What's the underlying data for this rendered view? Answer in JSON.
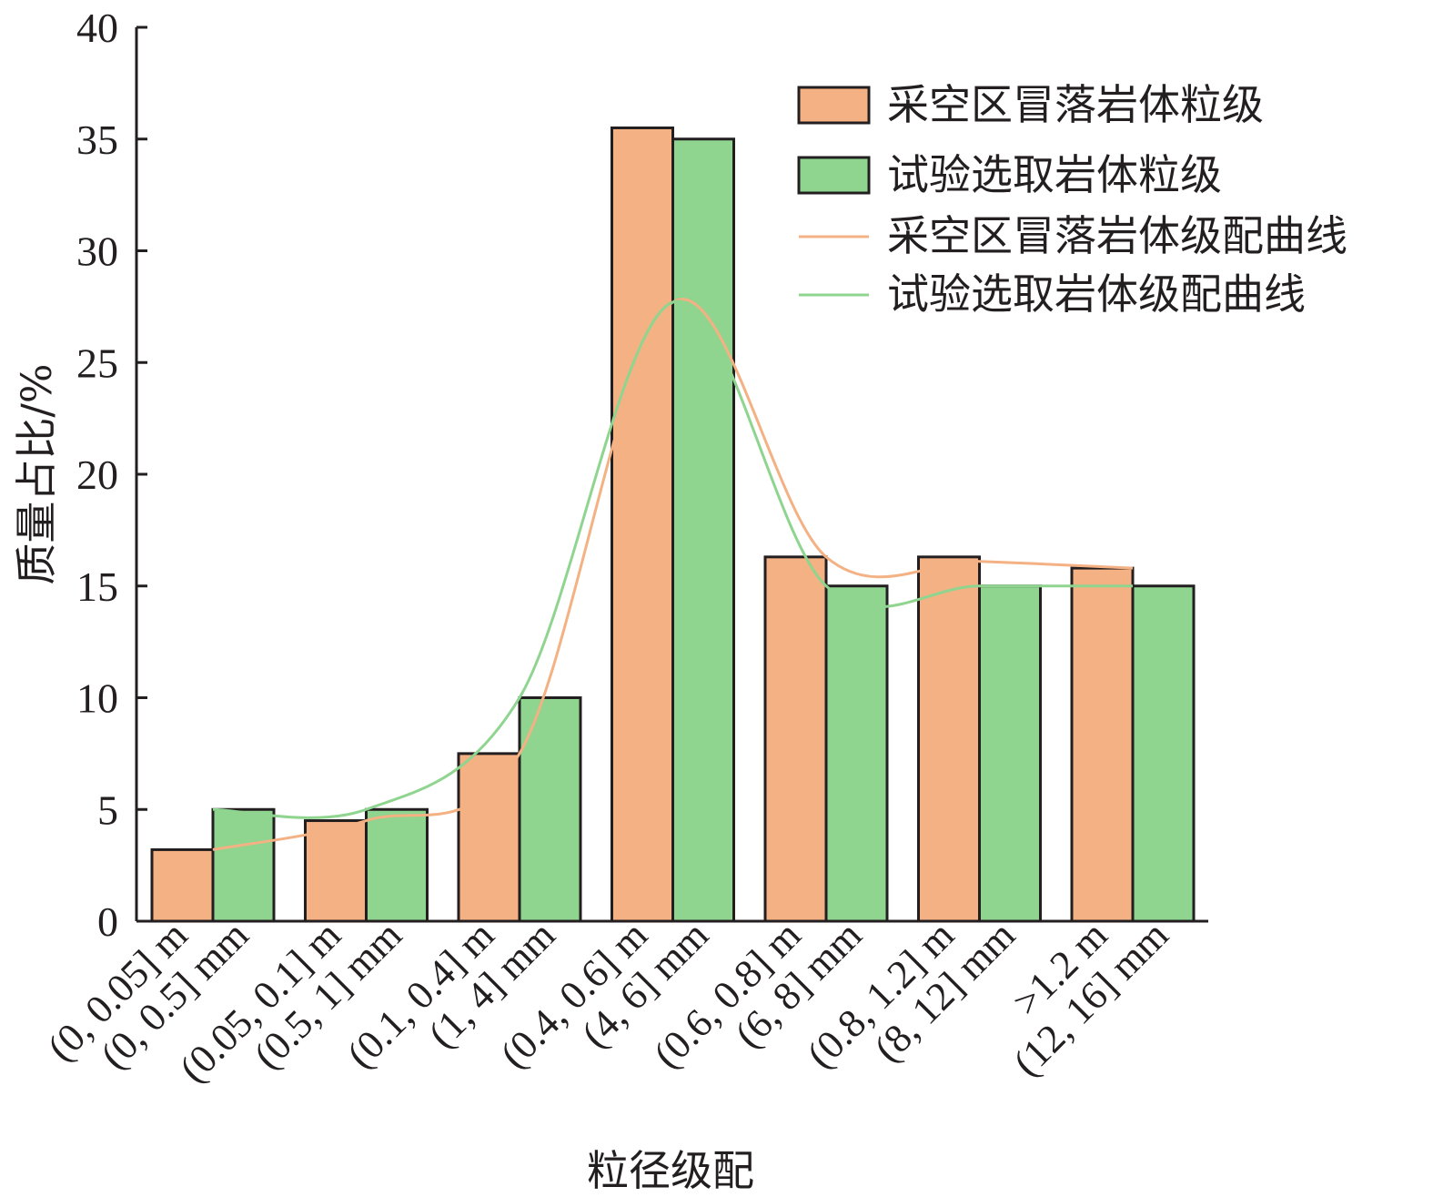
{
  "chart_data": {
    "type": "bar",
    "xlabel": "粒径级配",
    "ylabel": "质量占比/%",
    "ylim": [
      0,
      40
    ],
    "yticks": [
      0,
      5,
      10,
      15,
      20,
      25,
      30,
      35,
      40
    ],
    "groups": 7,
    "bar_labels": [
      [
        "(0, 0.05] m",
        "(0, 0.5] mm"
      ],
      [
        "(0.05, 0.1] m",
        "(0.5, 1] mm"
      ],
      [
        "(0.1, 0.4] m",
        "(1, 4] mm"
      ],
      [
        "(0.4, 0.6] m",
        "(4, 6] mm"
      ],
      [
        "(0.6, 0.8] m",
        "(6, 8] mm"
      ],
      [
        "(0.8, 1.2] m",
        "(8, 12] mm"
      ],
      [
        ">1.2 m",
        "(12, 16] mm"
      ]
    ],
    "series": [
      {
        "name": "采空区冒落岩体粒级",
        "kind": "bar",
        "color": "#f4b183",
        "values": [
          3.2,
          4.5,
          7.5,
          35.5,
          16.3,
          16.3,
          15.8
        ]
      },
      {
        "name": "试验选取岩体粒级",
        "kind": "bar",
        "color": "#8fd48f",
        "values": [
          5.0,
          5.0,
          10.0,
          35.0,
          15.0,
          15.0,
          15.0
        ]
      },
      {
        "name": "采空区冒落岩体级配曲线",
        "kind": "line",
        "color": "#f4b183",
        "values": [
          3.2,
          4.5,
          7.5,
          27.7,
          16.3,
          16.1,
          15.8
        ]
      },
      {
        "name": "试验选取岩体级配曲线",
        "kind": "line",
        "color": "#8fd48f",
        "values": [
          5.0,
          5.0,
          10.0,
          27.7,
          15.0,
          15.0,
          15.0
        ]
      }
    ],
    "legend_position": "top-right",
    "grid": false,
    "border_color": "#231f20"
  }
}
